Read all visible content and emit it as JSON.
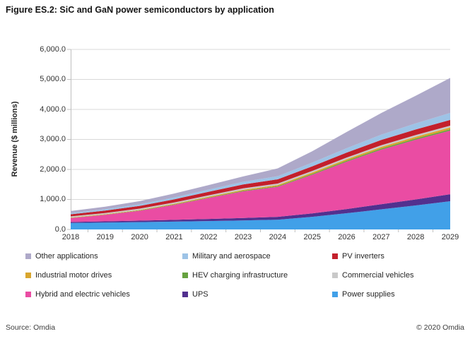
{
  "title": "Figure ES.2: SiC and GaN power semiconductors by application",
  "footer": {
    "source": "Source: Omdia",
    "copyright": "© 2020 Omdia"
  },
  "chart_data": {
    "type": "area",
    "stacked": true,
    "title": "Figure ES.2: SiC and GaN power semiconductors by application",
    "xlabel": "",
    "ylabel": "Revenue ($ millions)",
    "ylim": [
      0,
      6000
    ],
    "ytick_step": 1000,
    "ytick_labels": [
      "0.0",
      "1,000.0",
      "2,000.0",
      "3,000.0",
      "4,000.0",
      "5,000.0",
      "6,000.0"
    ],
    "categories": [
      "2018",
      "2019",
      "2020",
      "2021",
      "2022",
      "2023",
      "2024",
      "2025",
      "2026",
      "2027",
      "2028",
      "2029"
    ],
    "grid": true,
    "grid_color": "#d9d9d9",
    "axis_color": "#bfbfbf",
    "legend_position": "bottom",
    "legend": [
      "Other applications",
      "Military and aerospace",
      "PV inverters",
      "Industrial motor drives",
      "HEV charging infrastructure",
      "Commercial vehicles",
      "Hybrid and electric vehicles",
      "UPS",
      "Power supplies"
    ],
    "series": [
      {
        "name": "Power supplies",
        "color": "#41a0e8",
        "values": [
          215,
          230,
          245,
          262,
          280,
          300,
          325,
          420,
          540,
          670,
          800,
          940
        ]
      },
      {
        "name": "UPS",
        "color": "#52308f",
        "values": [
          35,
          42,
          50,
          60,
          70,
          82,
          95,
          115,
          140,
          170,
          200,
          235
        ]
      },
      {
        "name": "Hybrid and electric vehicles",
        "color": "#ea4ca3",
        "values": [
          130,
          215,
          330,
          500,
          700,
          890,
          1000,
          1290,
          1580,
          1820,
          1990,
          2120
        ]
      },
      {
        "name": "HEV charging infrastructure",
        "color": "#66a23f",
        "values": [
          5,
          7,
          9,
          12,
          15,
          19,
          23,
          28,
          33,
          37,
          41,
          45
        ]
      },
      {
        "name": "Industrial motor drives",
        "color": "#d9a62e",
        "values": [
          12,
          14,
          17,
          21,
          26,
          31,
          37,
          43,
          48,
          53,
          57,
          60
        ]
      },
      {
        "name": "Commercial vehicles",
        "color": "#c9c9c9",
        "values": [
          38,
          40,
          42,
          44,
          46,
          48,
          50,
          53,
          55,
          57,
          59,
          60
        ]
      },
      {
        "name": "PV inverters",
        "color": "#c3202c",
        "values": [
          70,
          80,
          92,
          105,
          118,
          130,
          142,
          155,
          166,
          176,
          184,
          190
        ]
      },
      {
        "name": "Military and aerospace",
        "color": "#9dc3e6",
        "values": [
          40,
          46,
          54,
          63,
          74,
          87,
          102,
          122,
          147,
          175,
          205,
          235
        ]
      },
      {
        "name": "Other applications",
        "color": "#aea9c9",
        "values": [
          70,
          85,
          105,
          130,
          150,
          180,
          260,
          380,
          540,
          720,
          920,
          1165
        ]
      }
    ],
    "note": "values in $ millions, estimated from gridlines"
  }
}
